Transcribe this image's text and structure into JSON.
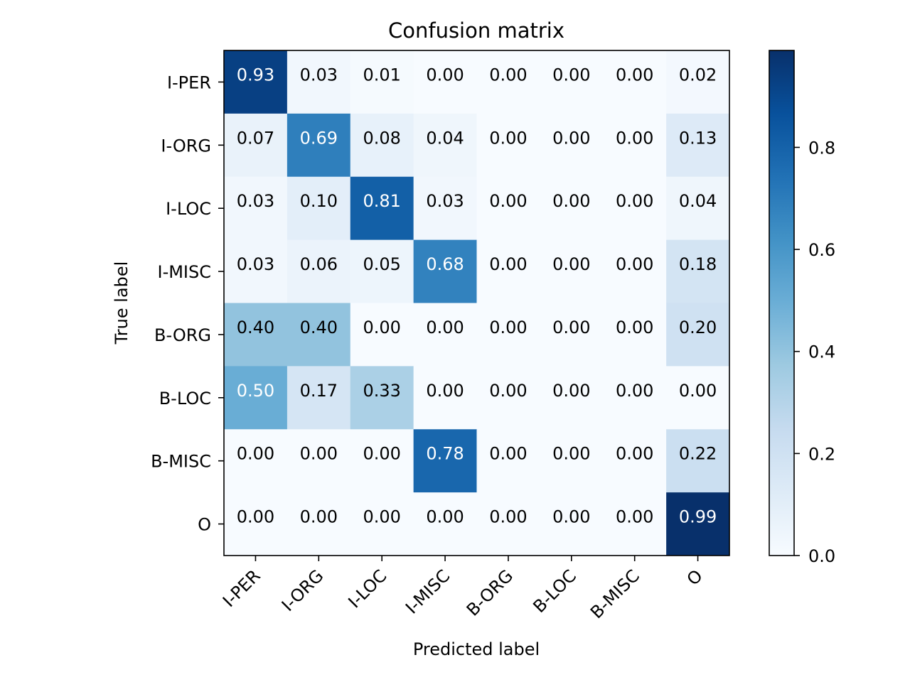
{
  "chart_data": {
    "type": "heatmap",
    "title": "Confusion matrix",
    "xlabel": "Predicted label",
    "ylabel": "True label",
    "x_labels": [
      "I-PER",
      "I-ORG",
      "I-LOC",
      "I-MISC",
      "B-ORG",
      "B-LOC",
      "B-MISC",
      "O"
    ],
    "y_labels": [
      "I-PER",
      "I-ORG",
      "I-LOC",
      "I-MISC",
      "B-ORG",
      "B-LOC",
      "B-MISC",
      "O"
    ],
    "values": [
      [
        0.93,
        0.03,
        0.01,
        0.0,
        0.0,
        0.0,
        0.0,
        0.02
      ],
      [
        0.07,
        0.69,
        0.08,
        0.04,
        0.0,
        0.0,
        0.0,
        0.13
      ],
      [
        0.03,
        0.1,
        0.81,
        0.03,
        0.0,
        0.0,
        0.0,
        0.04
      ],
      [
        0.03,
        0.06,
        0.05,
        0.68,
        0.0,
        0.0,
        0.0,
        0.18
      ],
      [
        0.4,
        0.4,
        0.0,
        0.0,
        0.0,
        0.0,
        0.0,
        0.2
      ],
      [
        0.5,
        0.17,
        0.33,
        0.0,
        0.0,
        0.0,
        0.0,
        0.0
      ],
      [
        0.0,
        0.0,
        0.0,
        0.78,
        0.0,
        0.0,
        0.0,
        0.22
      ],
      [
        0.0,
        0.0,
        0.0,
        0.0,
        0.0,
        0.0,
        0.0,
        0.99
      ]
    ],
    "colorbar": {
      "colormap": "Blues",
      "range": [
        0.0,
        0.99
      ],
      "ticks": [
        0.0,
        0.2,
        0.4,
        0.6,
        0.8
      ],
      "tick_labels": [
        "0.0",
        "0.2",
        "0.4",
        "0.6",
        "0.8"
      ]
    },
    "text_colors": {
      "light": "#ffffff",
      "dark": "#000000"
    },
    "grid": false
  }
}
